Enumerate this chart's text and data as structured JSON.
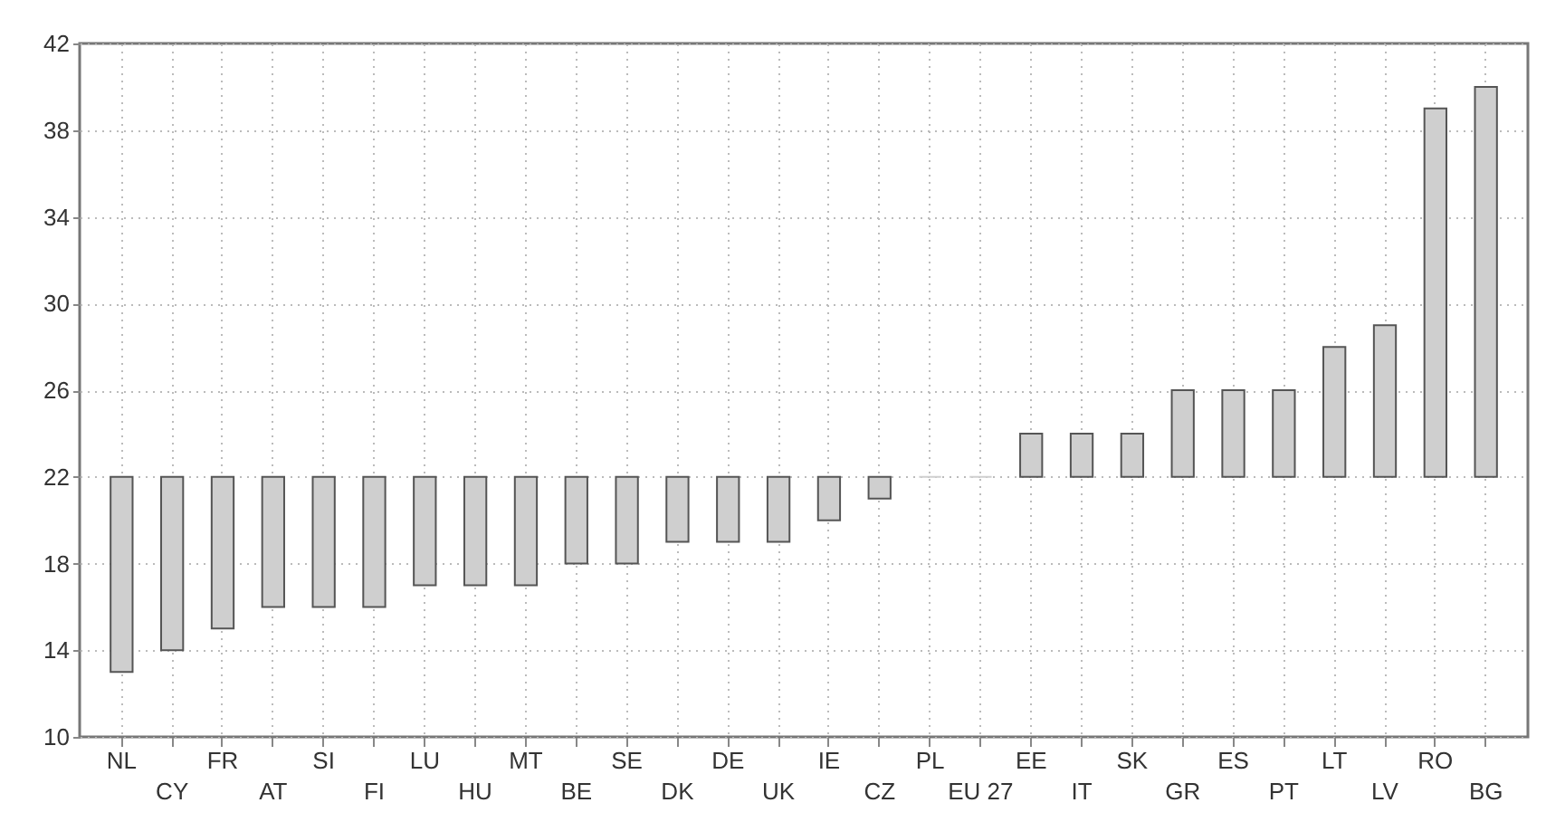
{
  "chart_data": {
    "type": "bar",
    "categories": [
      "NL",
      "CY",
      "FR",
      "AT",
      "SI",
      "FI",
      "LU",
      "HU",
      "MT",
      "BE",
      "SE",
      "DK",
      "DE",
      "UK",
      "IE",
      "CZ",
      "PL",
      "EU 27",
      "EE",
      "IT",
      "SK",
      "GR",
      "ES",
      "PT",
      "LT",
      "LV",
      "RO",
      "BG"
    ],
    "base": [
      22,
      22,
      22,
      22,
      22,
      22,
      22,
      22,
      22,
      22,
      22,
      22,
      22,
      22,
      22,
      22,
      22,
      22,
      22,
      22,
      22,
      22,
      22,
      22,
      22,
      22,
      22,
      22
    ],
    "values": [
      -9,
      -8,
      -7,
      -6,
      -6,
      -6,
      -5,
      -5,
      -5,
      -4,
      -4,
      -3,
      -3,
      -3,
      -2,
      -1,
      0,
      0,
      2,
      2,
      2,
      4,
      4,
      4,
      6,
      7,
      17,
      18
    ],
    "color": "#cfcfcf",
    "ylim": [
      10,
      42
    ],
    "yticks": [
      10,
      14,
      18,
      22,
      26,
      30,
      34,
      38,
      42
    ],
    "grid": true
  }
}
